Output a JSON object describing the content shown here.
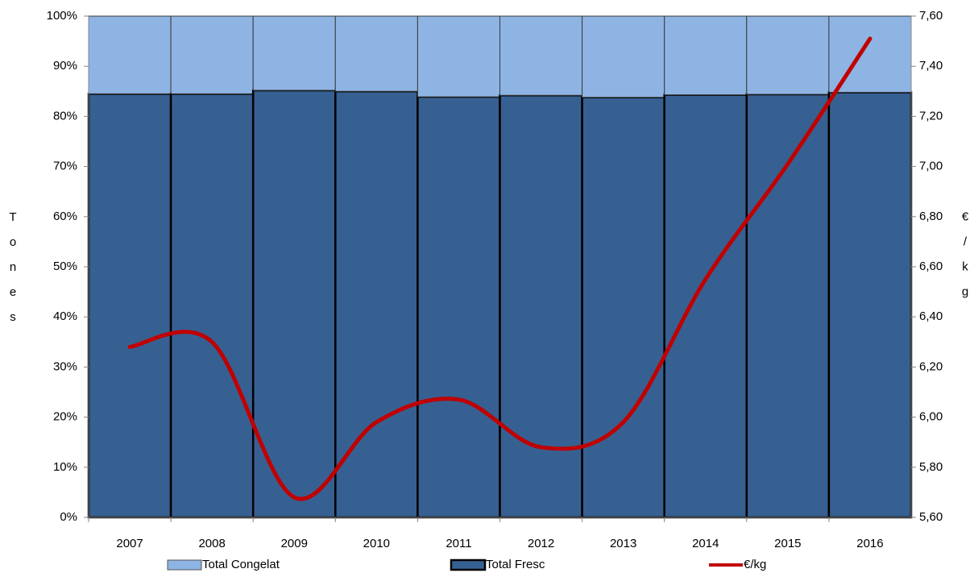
{
  "chart_data": {
    "type": "bar",
    "categories": [
      "2007",
      "2008",
      "2009",
      "2010",
      "2011",
      "2012",
      "2013",
      "2014",
      "2015",
      "2016"
    ],
    "stacked": true,
    "series": [
      {
        "name": "Total Fresc",
        "color": "#376092",
        "values": [
          84.5,
          84.5,
          85.2,
          85.0,
          83.9,
          84.2,
          83.8,
          84.3,
          84.4,
          84.8
        ]
      },
      {
        "name": "Total Congelat",
        "color": "#8eb4e3",
        "values": [
          15.5,
          15.5,
          14.8,
          15.0,
          16.1,
          15.8,
          16.2,
          15.7,
          15.6,
          15.2
        ]
      },
      {
        "name": "€/kg",
        "type": "line",
        "axis": "y2",
        "color": "#c00000",
        "values": [
          6.28,
          6.3,
          5.68,
          5.98,
          6.07,
          5.88,
          5.98,
          6.55,
          7.01,
          7.51
        ]
      }
    ],
    "ylabel": "Tones",
    "y2label": "€/kg",
    "ylim": [
      0,
      100
    ],
    "yticks": [
      {
        "value": 0,
        "label": "0%"
      },
      {
        "value": 10,
        "label": "10%"
      },
      {
        "value": 20,
        "label": "20%"
      },
      {
        "value": 30,
        "label": "30%"
      },
      {
        "value": 40,
        "label": "40%"
      },
      {
        "value": 50,
        "label": "50%"
      },
      {
        "value": 60,
        "label": "60%"
      },
      {
        "value": 70,
        "label": "70%"
      },
      {
        "value": 80,
        "label": "80%"
      },
      {
        "value": 90,
        "label": "90%"
      },
      {
        "value": 100,
        "label": "100%"
      }
    ],
    "y2lim": [
      5.6,
      7.6
    ],
    "y2ticks": [
      {
        "value": 5.6,
        "label": "5,60"
      },
      {
        "value": 5.8,
        "label": "5,80"
      },
      {
        "value": 6.0,
        "label": "6,00"
      },
      {
        "value": 6.2,
        "label": "6,20"
      },
      {
        "value": 6.4,
        "label": "6,40"
      },
      {
        "value": 6.6,
        "label": "6,60"
      },
      {
        "value": 6.8,
        "label": "6,80"
      },
      {
        "value": 7.0,
        "label": "7,00"
      },
      {
        "value": 7.2,
        "label": "7,20"
      },
      {
        "value": 7.4,
        "label": "7,40"
      },
      {
        "value": 7.6,
        "label": "7,60"
      }
    ],
    "legend": "bottom"
  }
}
